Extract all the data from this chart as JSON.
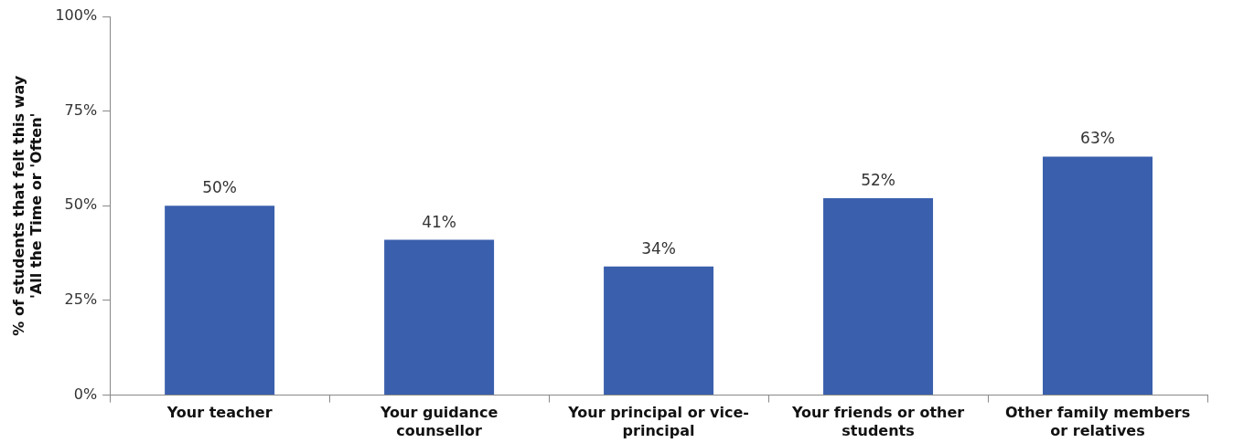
{
  "chart_data": {
    "type": "bar",
    "ylabel": "% of students that felt this way\n'All the Time or 'Often'",
    "categories": [
      "Your teacher",
      "Your guidance counsellor",
      "Your principal or vice-principal",
      "Your friends or other students",
      "Other family members or relatives"
    ],
    "values": [
      50,
      41,
      34,
      52,
      63
    ],
    "color": "#3a5fad",
    "ylim": [
      0,
      100
    ],
    "yticks": [
      {
        "value": 0,
        "label": "0%"
      },
      {
        "value": 25,
        "label": "25%"
      },
      {
        "value": 50,
        "label": "50%"
      },
      {
        "value": 75,
        "label": "75%"
      },
      {
        "value": 100,
        "label": "100%"
      }
    ],
    "value_labels": [
      "50%",
      "41%",
      "34%",
      "52%",
      "63%"
    ],
    "grid": false,
    "legend": false
  }
}
